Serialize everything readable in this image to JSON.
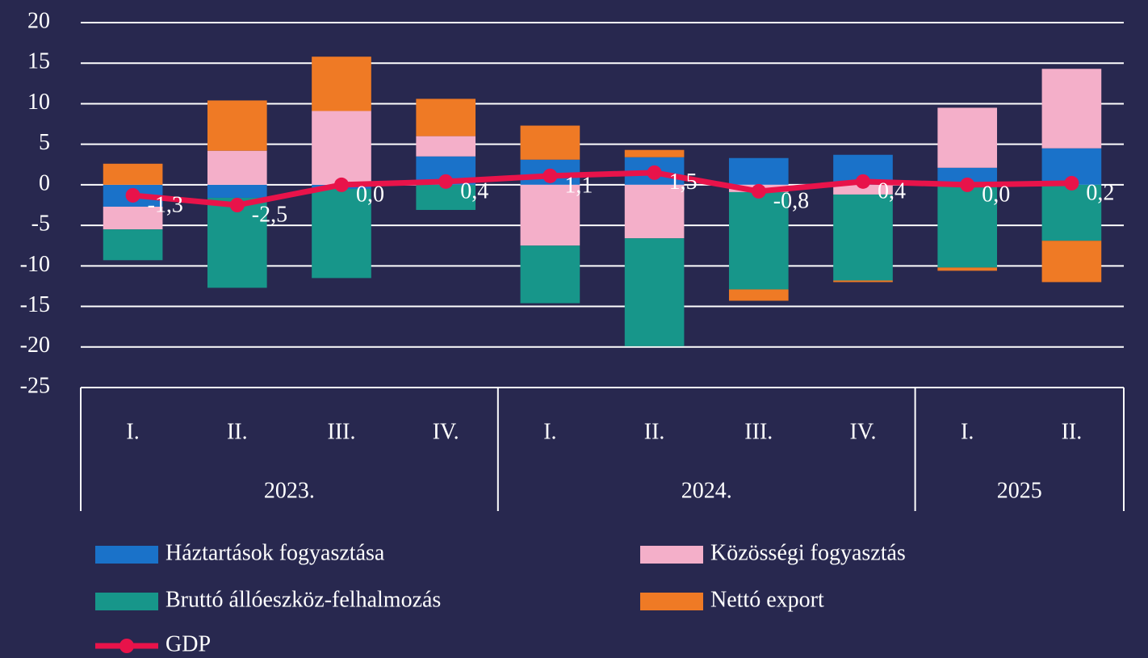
{
  "chart_data": {
    "type": "bar",
    "stacked": true,
    "categories": [
      "I.",
      "II.",
      "III.",
      "IV.",
      "I.",
      "II.",
      "III.",
      "IV.",
      "I.",
      "II."
    ],
    "x_groups": [
      "2023.",
      "2023.",
      "2023.",
      "2023.",
      "2024.",
      "2024.",
      "2024.",
      "2024.",
      "2025",
      "2025"
    ],
    "series": [
      {
        "name": "Háztartások fogyasztása",
        "color": "#1a72c9",
        "values": [
          -2.7,
          -1.6,
          -0.5,
          3.5,
          3.1,
          3.4,
          3.3,
          3.7,
          2.1,
          4.5
        ]
      },
      {
        "name": "Közösségi fogyasztás",
        "color": "#f4afc9",
        "values": [
          -2.8,
          4.2,
          9.1,
          2.5,
          -7.5,
          -6.6,
          -0.9,
          -1.2,
          7.4,
          9.8
        ]
      },
      {
        "name": "Bruttó állóeszköz-felhalmozás",
        "color": "#17968a",
        "values": [
          -3.8,
          -11.1,
          -11.0,
          -3.1,
          -7.1,
          -13.3,
          -12.0,
          -10.6,
          -10.2,
          -6.9
        ]
      },
      {
        "name": "Nettó export",
        "color": "#ef7a25",
        "values": [
          2.6,
          6.2,
          6.7,
          4.6,
          4.2,
          0.9,
          -1.4,
          -0.2,
          -0.4,
          -5.1
        ]
      },
      {
        "name": "GDP",
        "type": "line",
        "color": "#e8134a",
        "values": [
          -1.3,
          -2.5,
          0.0,
          0.4,
          1.1,
          1.5,
          -0.8,
          0.4,
          0.0,
          0.2
        ],
        "value_labels": [
          "-1,3",
          "-2,5",
          "0,0",
          "0,4",
          "1,1",
          "1,5",
          "-0,8",
          "0,4",
          "0,0",
          "0,2"
        ]
      }
    ],
    "ylim": [
      -25,
      20
    ],
    "yticks": [
      -25,
      -20,
      -15,
      -10,
      -5,
      0,
      5,
      10,
      15,
      20
    ],
    "grid": true
  }
}
